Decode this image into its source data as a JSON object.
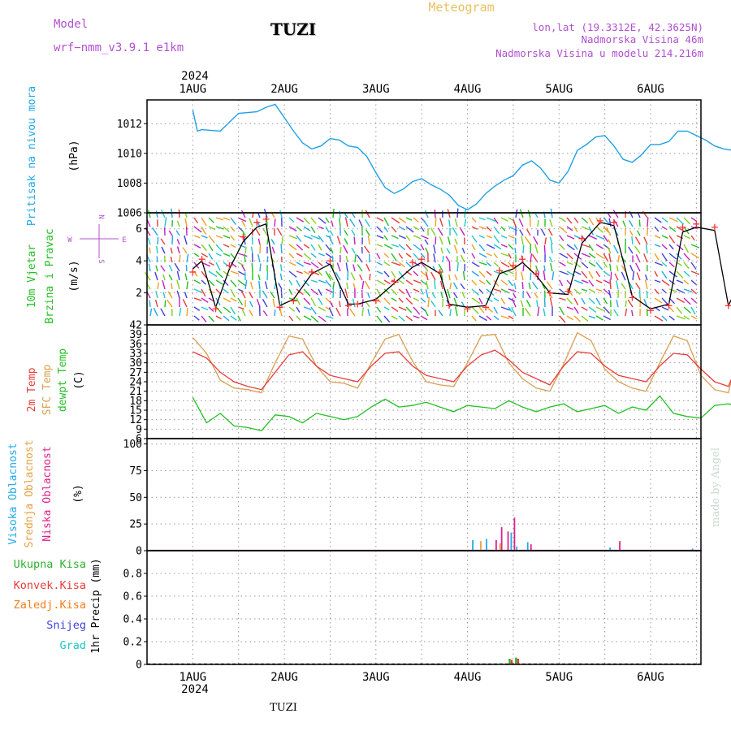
{
  "header": {
    "model_label": "Model",
    "model_name": "wrf−nmm_v3.9.1 e1km",
    "station": "TUZI",
    "meteogram": "Meteogram",
    "lonlat": "lon,lat (19.3312E, 42.3625N)",
    "elevation": "Nadmorska Visina 46m",
    "model_elevation": "Nadmorska Visina u modelu 214.216m",
    "year": "2024",
    "footer_station": "TUZI",
    "credit": "made by Angel"
  },
  "colors": {
    "pressure": "#1ea0e6",
    "temp2m": "#e83c3c",
    "sfc_temp": "#d9a050",
    "dewpoint": "#22c022",
    "high_cloud": "#20a8e8",
    "mid_cloud": "#e8a040",
    "low_cloud": "#e0208c",
    "total_precip": "#30b030",
    "conv_precip": "#e83c3c",
    "frz_precip": "#f08020",
    "snow": "#4040e0",
    "graupel": "#20c8c8",
    "wind_speed": "#000000",
    "gust_marker": "#ff3030"
  },
  "chart_data": [
    {
      "type": "line",
      "panel": "pressure",
      "ylabel": [
        "Pritisak na nivou mora",
        "(hPa)"
      ],
      "ylim": [
        1006,
        1013.6
      ],
      "yticks": [
        "1006",
        "1008",
        "1010",
        "1012"
      ],
      "xticks": [
        "1AUG",
        "2AUG",
        "3AUG",
        "4AUG",
        "5AUG",
        "6AUG"
      ],
      "grid": true,
      "x": [
        0.0,
        0.05,
        0.1,
        0.3,
        0.5,
        0.7,
        0.8,
        0.9,
        1.1,
        1.2,
        1.3,
        1.4,
        1.5,
        1.6,
        1.7,
        1.8,
        1.9,
        2.0,
        2.1,
        2.2,
        2.3,
        2.4,
        2.5,
        2.6,
        2.7,
        2.8,
        2.9,
        3.0,
        3.1,
        3.2,
        3.3,
        3.4,
        3.5,
        3.6,
        3.7,
        3.8,
        3.9,
        4.0,
        4.1,
        4.2,
        4.3,
        4.4,
        4.5,
        4.6,
        4.7,
        4.8,
        4.9,
        5.0,
        5.1,
        5.2,
        5.3,
        5.4,
        5.5,
        5.6,
        5.7,
        5.8,
        5.9,
        6.0
      ],
      "series": [
        {
          "values": [
            1012.9,
            1011.5,
            1011.6,
            1011.5,
            1012.7,
            1012.8,
            1013.1,
            1013.3,
            1011.5,
            1010.7,
            1010.3,
            1010.5,
            1011.0,
            1010.9,
            1010.5,
            1010.4,
            1009.8,
            1008.7,
            1007.7,
            1007.3,
            1007.6,
            1008.1,
            1008.3,
            1007.9,
            1007.6,
            1007.2,
            1006.5,
            1006.2,
            1006.6,
            1007.3,
            1007.8,
            1008.2,
            1008.5,
            1009.2,
            1009.5,
            1009.0,
            1008.2,
            1008.0,
            1008.8,
            1010.2,
            1010.6,
            1011.1,
            1011.2,
            1010.5,
            1009.6,
            1009.4,
            1009.9,
            1010.6,
            1010.6,
            1010.8,
            1011.5,
            1011.5,
            1011.2,
            1010.9,
            1010.5,
            1010.3,
            1010.2,
            1010.2
          ]
        }
      ]
    },
    {
      "type": "line",
      "panel": "wind",
      "ylabel": [
        "10m Vjetar",
        "Brzina i Pravac",
        "(m/s)"
      ],
      "compass": [
        "N",
        "W",
        "E",
        "S"
      ],
      "ylim": [
        0,
        7
      ],
      "yticks": [
        "2",
        "4",
        "6"
      ],
      "grid": true,
      "x": [
        0.0,
        0.1,
        0.25,
        0.4,
        0.55,
        0.7,
        0.8,
        0.95,
        1.1,
        1.3,
        1.5,
        1.7,
        1.8,
        2.0,
        2.2,
        2.4,
        2.5,
        2.7,
        2.8,
        3.0,
        3.2,
        3.35,
        3.5,
        3.6,
        3.75,
        3.9,
        4.1,
        4.25,
        4.45,
        4.6,
        4.8,
        5.0,
        5.2,
        5.35,
        5.5,
        5.7,
        5.85,
        6.0
      ],
      "series": [
        {
          "name": "speed",
          "values": [
            3.5,
            4.0,
            1.1,
            3.5,
            5.2,
            6.1,
            6.3,
            1.2,
            1.6,
            3.2,
            3.8,
            1.3,
            1.3,
            1.6,
            2.6,
            3.6,
            3.9,
            3.2,
            1.3,
            1.1,
            1.2,
            3.2,
            3.5,
            3.9,
            3.1,
            2.0,
            1.9,
            5.1,
            6.4,
            6.2,
            1.8,
            1.0,
            1.3,
            5.8,
            6.1,
            5.9,
            1.2,
            3.0
          ]
        },
        {
          "name": "gust",
          "values": [
            3.3,
            4.1,
            1.0,
            3.7,
            5.5,
            6.4,
            6.6,
            1.1,
            1.5,
            3.3,
            4.0,
            1.2,
            1.3,
            1.5,
            2.7,
            3.9,
            4.1,
            3.3,
            1.2,
            1.0,
            1.1,
            3.4,
            3.7,
            4.1,
            3.2,
            2.0,
            2.1,
            5.4,
            6.5,
            6.4,
            1.7,
            0.9,
            1.2,
            6.1,
            6.3,
            6.1,
            1.2,
            3.2
          ]
        }
      ]
    },
    {
      "type": "line",
      "panel": "temperature",
      "ylabel": [
        "2m Temp",
        "SFC Temp",
        "dewpt Temp",
        "(C)"
      ],
      "ylim": [
        6,
        42
      ],
      "yticks": [
        "6",
        "9",
        "12",
        "15",
        "18",
        "21",
        "24",
        "27",
        "30",
        "33",
        "36",
        "39",
        "42"
      ],
      "grid": true,
      "x": [
        0.0,
        0.15,
        0.3,
        0.45,
        0.6,
        0.75,
        0.9,
        1.05,
        1.2,
        1.35,
        1.5,
        1.65,
        1.8,
        1.95,
        2.1,
        2.25,
        2.4,
        2.55,
        2.7,
        2.85,
        3.0,
        3.15,
        3.3,
        3.45,
        3.6,
        3.75,
        3.9,
        4.05,
        4.2,
        4.35,
        4.5,
        4.65,
        4.8,
        4.95,
        5.1,
        5.25,
        5.4,
        5.55,
        5.7,
        5.85,
        6.0
      ],
      "series": [
        {
          "name": "2m Temp",
          "values": [
            33.5,
            31.5,
            27.0,
            24.0,
            22.5,
            21.5,
            27.0,
            32.5,
            33.5,
            29.0,
            26.0,
            25.0,
            24.0,
            29.0,
            33.0,
            33.5,
            29.0,
            26.0,
            25.0,
            24.0,
            29.0,
            32.5,
            34.0,
            31.0,
            27.0,
            25.0,
            23.0,
            29.0,
            33.5,
            33.0,
            29.0,
            26.0,
            25.0,
            24.0,
            29.0,
            33.0,
            32.5,
            28.0,
            24.0,
            22.5,
            33.0
          ]
        },
        {
          "name": "SFC Temp",
          "values": [
            38.0,
            33.0,
            24.5,
            22.0,
            21.5,
            20.5,
            30.0,
            38.5,
            37.5,
            29.0,
            24.0,
            23.5,
            22.0,
            30.0,
            37.5,
            39.0,
            30.5,
            24.0,
            23.0,
            22.5,
            30.0,
            38.5,
            39.0,
            30.0,
            25.0,
            22.0,
            21.0,
            29.5,
            39.5,
            37.0,
            28.0,
            24.0,
            22.0,
            21.0,
            30.0,
            38.5,
            37.0,
            26.0,
            21.5,
            20.5,
            39.0
          ]
        },
        {
          "name": "dewpt Temp",
          "values": [
            19.0,
            11.0,
            14.0,
            10.0,
            9.5,
            8.5,
            13.5,
            13.0,
            11.0,
            14.0,
            13.0,
            12.0,
            13.0,
            16.0,
            18.5,
            16.0,
            16.5,
            17.5,
            16.0,
            14.5,
            16.5,
            16.0,
            15.5,
            18.0,
            16.0,
            14.5,
            16.0,
            17.0,
            14.5,
            15.5,
            16.5,
            14.0,
            16.0,
            15.0,
            19.5,
            14.0,
            13.0,
            12.5,
            16.5,
            17.0,
            16.0
          ]
        }
      ]
    },
    {
      "type": "bar",
      "panel": "clouds",
      "ylabel": [
        "Visoka Oblacnost",
        "Srednja Oblacnost",
        "Niska Oblacnost",
        "(%)"
      ],
      "ylim": [
        0,
        105
      ],
      "yticks": [
        "0",
        "25",
        "50",
        "75",
        "100"
      ],
      "grid": true,
      "x": [
        3.05,
        3.12,
        3.2,
        3.27,
        3.33,
        3.4,
        3.47,
        3.53,
        3.65,
        4.55,
        4.62,
        5.45,
        5.95
      ],
      "series": [
        {
          "name": "Visoka Oblacnost",
          "values": [
            10,
            0,
            11,
            0,
            0,
            0,
            17,
            4,
            8,
            3,
            0,
            2,
            2
          ]
        },
        {
          "name": "Srednja Oblacnost",
          "values": [
            0,
            9,
            0,
            0,
            7,
            0,
            0,
            0,
            0,
            0,
            0,
            0,
            0
          ]
        },
        {
          "name": "Niska Oblacnost",
          "values": [
            0,
            0,
            0,
            10,
            22,
            18,
            31,
            0,
            6,
            0,
            9,
            0,
            0
          ]
        }
      ]
    },
    {
      "type": "bar",
      "panel": "precipitation",
      "ylabel": [
        "1hr Precip (mm)"
      ],
      "legend": [
        "Ukupna Kisa",
        "Konvek.Kisa",
        "Zaledj.Kisa",
        "Snijeg",
        "Grad"
      ],
      "ylim": [
        0,
        1.0
      ],
      "yticks": [
        "0",
        "0.2",
        "0.4",
        "0.6",
        "0.8"
      ],
      "grid": true,
      "x": [
        3.35,
        3.45,
        3.52
      ],
      "series": [
        {
          "name": "Ukupna Kisa",
          "values": [
            0.01,
            0.05,
            0.06
          ]
        },
        {
          "name": "Konvek.Kisa",
          "values": [
            0.0,
            0.04,
            0.05
          ]
        }
      ]
    }
  ]
}
